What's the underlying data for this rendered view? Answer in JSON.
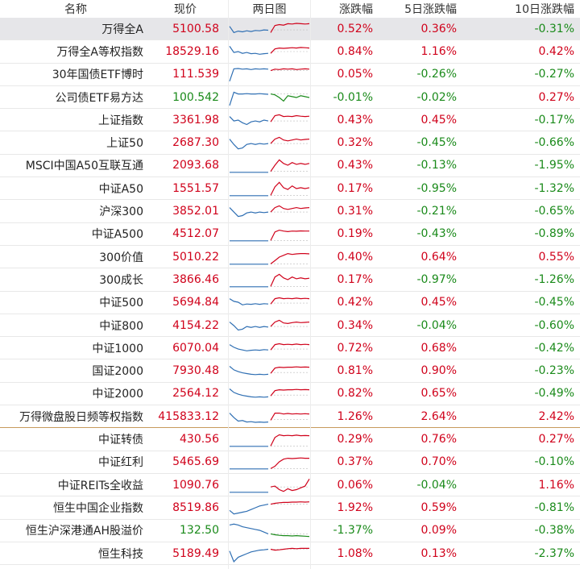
{
  "header": {
    "name": "名称",
    "price": "现价",
    "chart": "两日图",
    "chg": "涨跌幅",
    "chg5": "5日涨跌幅",
    "chg10": "10日涨跌幅"
  },
  "colors": {
    "up": "#d0021b",
    "down": "#1a8a1a",
    "prev_day_line": "#2f6fb3",
    "selected_row": "#e6e6e9",
    "section_divider": "#c79a5c"
  },
  "selected_row": 0,
  "section_divider_after_row": 17,
  "rows": [
    {
      "name": "万得全A",
      "price": "5100.58",
      "chg": "0.52%",
      "chg5": "0.36%",
      "chg10": "-0.31%",
      "spark": {
        "prev": [
          0.35,
          0.7,
          0.62,
          0.66,
          0.6,
          0.64,
          0.58,
          0.6,
          0.55,
          0.57
        ],
        "cur": [
          0.7,
          0.3,
          0.25,
          0.28,
          0.2,
          0.22,
          0.18,
          0.2,
          0.22,
          0.2
        ],
        "gap": 0.55
      }
    },
    {
      "name": "万得全A等权指数",
      "price": "18529.16",
      "chg": "0.84%",
      "chg5": "1.16%",
      "chg10": "0.42%",
      "spark": {
        "prev": [
          0.2,
          0.55,
          0.5,
          0.6,
          0.55,
          0.62,
          0.6,
          0.65,
          0.62,
          0.6
        ],
        "cur": [
          0.6,
          0.35,
          0.3,
          0.32,
          0.3,
          0.28,
          0.3,
          0.27,
          0.28,
          0.3
        ],
        "gap": 0.5
      }
    },
    {
      "name": "30年国债ETF博时",
      "price": "111.539",
      "chg": "0.05%",
      "chg5": "-0.26%",
      "chg10": "-0.27%",
      "spark": {
        "prev": [
          0.9,
          0.2,
          0.18,
          0.22,
          0.2,
          0.24,
          0.2,
          0.22,
          0.2,
          0.22
        ],
        "cur": [
          0.3,
          0.22,
          0.24,
          0.2,
          0.22,
          0.2,
          0.24,
          0.22,
          0.2,
          0.22
        ],
        "gap": 0.3
      }
    },
    {
      "name": "公司债ETF易方达",
      "price": "100.542",
      "chg": "-0.01%",
      "chg5": "-0.02%",
      "chg10": "0.27%",
      "spark": {
        "prev": [
          0.95,
          0.2,
          0.3,
          0.3,
          0.28,
          0.3,
          0.3,
          0.28,
          0.3,
          0.32
        ],
        "cur": [
          0.3,
          0.35,
          0.5,
          0.7,
          0.4,
          0.45,
          0.5,
          0.4,
          0.45,
          0.5
        ],
        "gap": 0.3
      }
    },
    {
      "name": "上证指数",
      "price": "3361.98",
      "chg": "0.43%",
      "chg5": "0.45%",
      "chg10": "-0.17%",
      "spark": {
        "prev": [
          0.3,
          0.55,
          0.5,
          0.65,
          0.75,
          0.6,
          0.55,
          0.6,
          0.5,
          0.55
        ],
        "cur": [
          0.6,
          0.25,
          0.2,
          0.3,
          0.28,
          0.3,
          0.25,
          0.28,
          0.3,
          0.28
        ],
        "gap": 0.55
      }
    },
    {
      "name": "上证50",
      "price": "2687.30",
      "chg": "0.32%",
      "chg5": "-0.45%",
      "chg10": "-0.66%",
      "spark": {
        "prev": [
          0.3,
          0.6,
          0.85,
          0.8,
          0.6,
          0.55,
          0.6,
          0.55,
          0.58,
          0.55
        ],
        "cur": [
          0.55,
          0.3,
          0.2,
          0.35,
          0.4,
          0.35,
          0.3,
          0.35,
          0.32,
          0.3
        ],
        "gap": 0.55
      }
    },
    {
      "name": "MSCI中国A50互联互通",
      "price": "2093.68",
      "chg": "0.43%",
      "chg5": "-0.13%",
      "chg10": "-1.95%",
      "spark": {
        "prev": [
          0.9,
          0.9,
          0.9,
          0.9,
          0.9,
          0.9,
          0.9,
          0.9,
          0.9,
          0.9
        ],
        "cur": [
          0.85,
          0.5,
          0.2,
          0.4,
          0.5,
          0.35,
          0.45,
          0.4,
          0.45,
          0.4
        ],
        "gap": 0.85
      }
    },
    {
      "name": "中证A50",
      "price": "1551.57",
      "chg": "0.17%",
      "chg5": "-0.95%",
      "chg10": "-1.32%",
      "spark": {
        "prev": [
          0.9,
          0.9,
          0.9,
          0.9,
          0.9,
          0.9,
          0.9,
          0.9,
          0.9,
          0.9
        ],
        "cur": [
          0.88,
          0.4,
          0.15,
          0.45,
          0.55,
          0.35,
          0.5,
          0.45,
          0.5,
          0.45
        ],
        "gap": 0.88
      }
    },
    {
      "name": "沪深300",
      "price": "3852.01",
      "chg": "0.31%",
      "chg5": "-0.21%",
      "chg10": "-0.65%",
      "spark": {
        "prev": [
          0.3,
          0.55,
          0.8,
          0.75,
          0.6,
          0.55,
          0.6,
          0.55,
          0.58,
          0.55
        ],
        "cur": [
          0.55,
          0.3,
          0.2,
          0.35,
          0.4,
          0.35,
          0.3,
          0.35,
          0.32,
          0.3
        ],
        "gap": 0.55
      }
    },
    {
      "name": "中证A500",
      "price": "4512.07",
      "chg": "0.19%",
      "chg5": "-0.43%",
      "chg10": "-0.89%",
      "spark": {
        "prev": [
          0.9,
          0.9,
          0.9,
          0.9,
          0.9,
          0.9,
          0.9,
          0.9,
          0.9,
          0.9
        ],
        "cur": [
          0.88,
          0.4,
          0.3,
          0.35,
          0.38,
          0.35,
          0.36,
          0.34,
          0.35,
          0.35
        ],
        "gap": 0.88
      }
    },
    {
      "name": "300价值",
      "price": "5010.22",
      "chg": "0.40%",
      "chg5": "0.64%",
      "chg10": "0.55%",
      "spark": {
        "prev": [
          0.9,
          0.9,
          0.9,
          0.9,
          0.9,
          0.9,
          0.9,
          0.9,
          0.9,
          0.9
        ],
        "cur": [
          0.88,
          0.7,
          0.5,
          0.4,
          0.3,
          0.35,
          0.32,
          0.3,
          0.3,
          0.32
        ],
        "gap": 0.88
      }
    },
    {
      "name": "300成长",
      "price": "3866.46",
      "chg": "0.17%",
      "chg5": "-0.97%",
      "chg10": "-1.26%",
      "spark": {
        "prev": [
          0.9,
          0.9,
          0.9,
          0.9,
          0.9,
          0.9,
          0.9,
          0.9,
          0.9,
          0.9
        ],
        "cur": [
          0.88,
          0.35,
          0.2,
          0.4,
          0.5,
          0.35,
          0.45,
          0.4,
          0.45,
          0.42
        ],
        "gap": 0.88
      }
    },
    {
      "name": "中证500",
      "price": "5694.84",
      "chg": "0.42%",
      "chg5": "0.45%",
      "chg10": "-0.45%",
      "spark": {
        "prev": [
          0.3,
          0.45,
          0.5,
          0.65,
          0.6,
          0.62,
          0.58,
          0.62,
          0.58,
          0.6
        ],
        "cur": [
          0.6,
          0.3,
          0.25,
          0.3,
          0.28,
          0.3,
          0.27,
          0.3,
          0.28,
          0.3
        ],
        "gap": 0.55
      }
    },
    {
      "name": "中证800",
      "price": "4154.22",
      "chg": "0.34%",
      "chg5": "-0.04%",
      "chg10": "-0.60%",
      "spark": {
        "prev": [
          0.3,
          0.5,
          0.75,
          0.7,
          0.55,
          0.6,
          0.55,
          0.6,
          0.55,
          0.58
        ],
        "cur": [
          0.55,
          0.3,
          0.2,
          0.35,
          0.38,
          0.33,
          0.3,
          0.33,
          0.32,
          0.3
        ],
        "gap": 0.55
      }
    },
    {
      "name": "中证1000",
      "price": "6070.04",
      "chg": "0.72%",
      "chg5": "0.68%",
      "chg10": "-0.42%",
      "spark": {
        "prev": [
          0.3,
          0.45,
          0.55,
          0.6,
          0.65,
          0.62,
          0.6,
          0.62,
          0.58,
          0.6
        ],
        "cur": [
          0.6,
          0.3,
          0.25,
          0.3,
          0.28,
          0.3,
          0.27,
          0.3,
          0.28,
          0.3
        ],
        "gap": 0.55
      }
    },
    {
      "name": "国证2000",
      "price": "7930.48",
      "chg": "0.81%",
      "chg5": "0.90%",
      "chg10": "-0.23%",
      "spark": {
        "prev": [
          0.25,
          0.45,
          0.55,
          0.62,
          0.66,
          0.7,
          0.72,
          0.7,
          0.72,
          0.7
        ],
        "cur": [
          0.65,
          0.35,
          0.3,
          0.32,
          0.3,
          0.3,
          0.28,
          0.3,
          0.29,
          0.3
        ],
        "gap": 0.6
      }
    },
    {
      "name": "中证2000",
      "price": "2564.12",
      "chg": "0.82%",
      "chg5": "0.65%",
      "chg10": "-0.49%",
      "spark": {
        "prev": [
          0.25,
          0.45,
          0.55,
          0.62,
          0.66,
          0.7,
          0.72,
          0.7,
          0.72,
          0.7
        ],
        "cur": [
          0.65,
          0.35,
          0.3,
          0.32,
          0.3,
          0.3,
          0.28,
          0.3,
          0.29,
          0.3
        ],
        "gap": 0.6
      }
    },
    {
      "name": "万得微盘股日频等权指数",
      "price": "415833.12",
      "chg": "1.26%",
      "chg5": "2.64%",
      "chg10": "2.42%",
      "spark": {
        "prev": [
          0.3,
          0.55,
          0.75,
          0.72,
          0.8,
          0.78,
          0.82,
          0.8,
          0.82,
          0.8
        ],
        "cur": [
          0.7,
          0.3,
          0.3,
          0.35,
          0.32,
          0.35,
          0.33,
          0.35,
          0.33,
          0.35
        ],
        "gap": 0.65
      }
    },
    {
      "name": "中证转债",
      "price": "430.56",
      "chg": "0.29%",
      "chg5": "0.76%",
      "chg10": "0.27%",
      "spark": {
        "prev": [
          0.9,
          0.9,
          0.9,
          0.9,
          0.9,
          0.9,
          0.9,
          0.9,
          0.9,
          0.9
        ],
        "cur": [
          0.88,
          0.4,
          0.25,
          0.3,
          0.28,
          0.3,
          0.27,
          0.3,
          0.29,
          0.3
        ],
        "gap": 0.88
      }
    },
    {
      "name": "中证红利",
      "price": "5465.69",
      "chg": "0.37%",
      "chg5": "0.70%",
      "chg10": "-0.10%",
      "spark": {
        "prev": [
          0.9,
          0.9,
          0.9,
          0.9,
          0.9,
          0.9,
          0.9,
          0.9,
          0.9,
          0.9
        ],
        "cur": [
          0.88,
          0.75,
          0.5,
          0.35,
          0.3,
          0.32,
          0.3,
          0.28,
          0.3,
          0.3
        ],
        "gap": 0.88
      }
    },
    {
      "name": "中证REITs全收益",
      "price": "1090.76",
      "chg": "0.06%",
      "chg5": "-0.04%",
      "chg10": "1.16%",
      "spark": {
        "prev": [
          0.9,
          0.9,
          0.9,
          0.9,
          0.9,
          0.9,
          0.9,
          0.9,
          0.9,
          0.9
        ],
        "cur": [
          0.6,
          0.55,
          0.75,
          0.85,
          0.7,
          0.8,
          0.75,
          0.65,
          0.55,
          0.15
        ],
        "gap": 0.6
      }
    },
    {
      "name": "恒生中国企业指数",
      "price": "8519.86",
      "chg": "1.92%",
      "chg5": "0.59%",
      "chg10": "-0.81%",
      "spark": {
        "prev": [
          0.65,
          0.85,
          0.8,
          0.75,
          0.7,
          0.6,
          0.5,
          0.4,
          0.35,
          0.3
        ],
        "cur": [
          0.3,
          0.25,
          0.22,
          0.2,
          0.2,
          0.18,
          0.18,
          0.17,
          0.18,
          0.17
        ],
        "gap": 0.3
      }
    },
    {
      "name": "恒生沪深港通AH股溢价",
      "price": "132.50",
      "chg": "-1.37%",
      "chg5": "0.09%",
      "chg10": "-0.38%",
      "spark": {
        "prev": [
          0.2,
          0.15,
          0.2,
          0.3,
          0.35,
          0.4,
          0.45,
          0.5,
          0.6,
          0.7
        ],
        "cur": [
          0.7,
          0.75,
          0.78,
          0.8,
          0.8,
          0.82,
          0.8,
          0.82,
          0.83,
          0.85
        ],
        "gap": 0.7
      }
    },
    {
      "name": "恒生科技",
      "price": "5189.49",
      "chg": "1.08%",
      "chg5": "0.13%",
      "chg10": "-2.37%",
      "spark": {
        "prev": [
          0.35,
          0.95,
          0.7,
          0.6,
          0.5,
          0.4,
          0.35,
          0.3,
          0.28,
          0.25
        ],
        "cur": [
          0.25,
          0.3,
          0.28,
          0.25,
          0.22,
          0.2,
          0.22,
          0.2,
          0.2,
          0.2
        ],
        "gap": 0.25
      }
    }
  ]
}
